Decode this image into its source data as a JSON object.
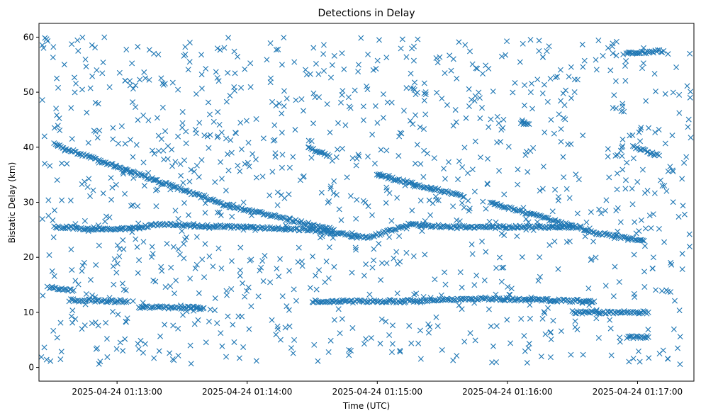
{
  "chart_data": {
    "type": "scatter",
    "title": "Detections in Delay",
    "xlabel": "Time (UTC)",
    "ylabel": "Bistatic Delay (km)",
    "x_ticks": [
      "2025-04-24 01:13:00",
      "2025-04-24 01:14:00",
      "2025-04-24 01:15:00",
      "2025-04-24 01:16:00",
      "2025-04-24 01:17:00"
    ],
    "x_tick_values": [
      "01:13:00",
      "01:14:00",
      "01:15:00",
      "01:16:00",
      "01:17:00"
    ],
    "xlim": [
      "01:12:24",
      "01:17:26"
    ],
    "ylim": [
      -2.5,
      62.5
    ],
    "y_ticks": [
      0,
      10,
      20,
      30,
      40,
      50,
      60
    ],
    "marker": "x",
    "color": "#1f77b4",
    "grid": false,
    "legend": "none",
    "tracks": [
      {
        "points": [
          [
            "01:12:31",
            40.5
          ],
          [
            "01:13:50",
            29.5
          ],
          [
            "01:14:40",
            25.0
          ]
        ]
      },
      {
        "points": [
          [
            "01:14:28",
            40.0
          ],
          [
            "01:14:38",
            38.4
          ]
        ]
      },
      {
        "points": [
          [
            "01:15:00",
            35.0
          ],
          [
            "01:15:40",
            31.0
          ]
        ]
      },
      {
        "points": [
          [
            "01:15:52",
            30.0
          ],
          [
            "01:16:40",
            24.5
          ],
          [
            "01:17:03",
            23.0
          ]
        ]
      },
      {
        "points": [
          [
            "01:16:58",
            40.0
          ],
          [
            "01:17:10",
            38.5
          ]
        ]
      },
      {
        "points": [
          [
            "01:12:31",
            25.5
          ],
          [
            "01:13:00",
            25.0
          ],
          [
            "01:13:20",
            26.0
          ],
          [
            "01:14:30",
            25.0
          ],
          [
            "01:14:55",
            23.5
          ],
          [
            "01:15:15",
            26.0
          ],
          [
            "01:15:35",
            25.5
          ],
          [
            "01:16:30",
            25.5
          ]
        ]
      },
      {
        "points": [
          [
            "01:12:28",
            14.5
          ],
          [
            "01:12:40",
            14.0
          ]
        ]
      },
      {
        "points": [
          [
            "01:12:38",
            12.2
          ],
          [
            "01:13:05",
            12.0
          ]
        ]
      },
      {
        "points": [
          [
            "01:13:10",
            11.0
          ],
          [
            "01:13:40",
            10.8
          ]
        ]
      },
      {
        "points": [
          [
            "01:14:30",
            12.0
          ],
          [
            "01:15:10",
            12.0
          ],
          [
            "01:15:50",
            12.5
          ],
          [
            "01:16:40",
            12.0
          ]
        ]
      },
      {
        "points": [
          [
            "01:16:30",
            10.0
          ],
          [
            "01:17:05",
            10.0
          ]
        ]
      },
      {
        "points": [
          [
            "01:16:55",
            57.0
          ],
          [
            "01:17:12",
            57.5
          ]
        ]
      },
      {
        "points": [
          [
            "01:16:06",
            44.5
          ],
          [
            "01:16:10",
            44.2
          ]
        ]
      },
      {
        "points": [
          [
            "01:16:55",
            5.5
          ],
          [
            "01:17:05",
            5.5
          ]
        ]
      }
    ],
    "noise": {
      "count": 1150,
      "x_range": [
        "01:12:24",
        "01:17:26"
      ],
      "y_range": [
        0.5,
        60
      ]
    }
  }
}
